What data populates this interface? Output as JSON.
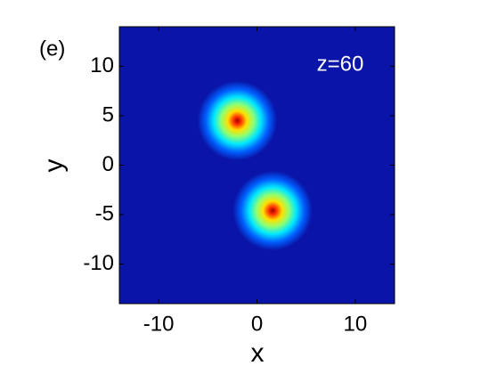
{
  "chart_data": {
    "type": "heatmap",
    "panel_label": "(e)",
    "annotation": "z=60",
    "xlabel": "x",
    "ylabel": "y",
    "xlim": [
      -14,
      14
    ],
    "ylim": [
      -14,
      14
    ],
    "xticks": [
      -10,
      0,
      10
    ],
    "yticks": [
      -10,
      -5,
      0,
      5,
      10
    ],
    "background": "#0a14a8",
    "colormap": [
      "#0a14a8",
      "#0060ff",
      "#00e8ff",
      "#90ff70",
      "#ffe000",
      "#ff3000",
      "#a00000"
    ],
    "peaks": {
      "x": [
        -2,
        1.6
      ],
      "y": [
        4.5,
        -4.6
      ],
      "radius": [
        3,
        3
      ]
    }
  }
}
